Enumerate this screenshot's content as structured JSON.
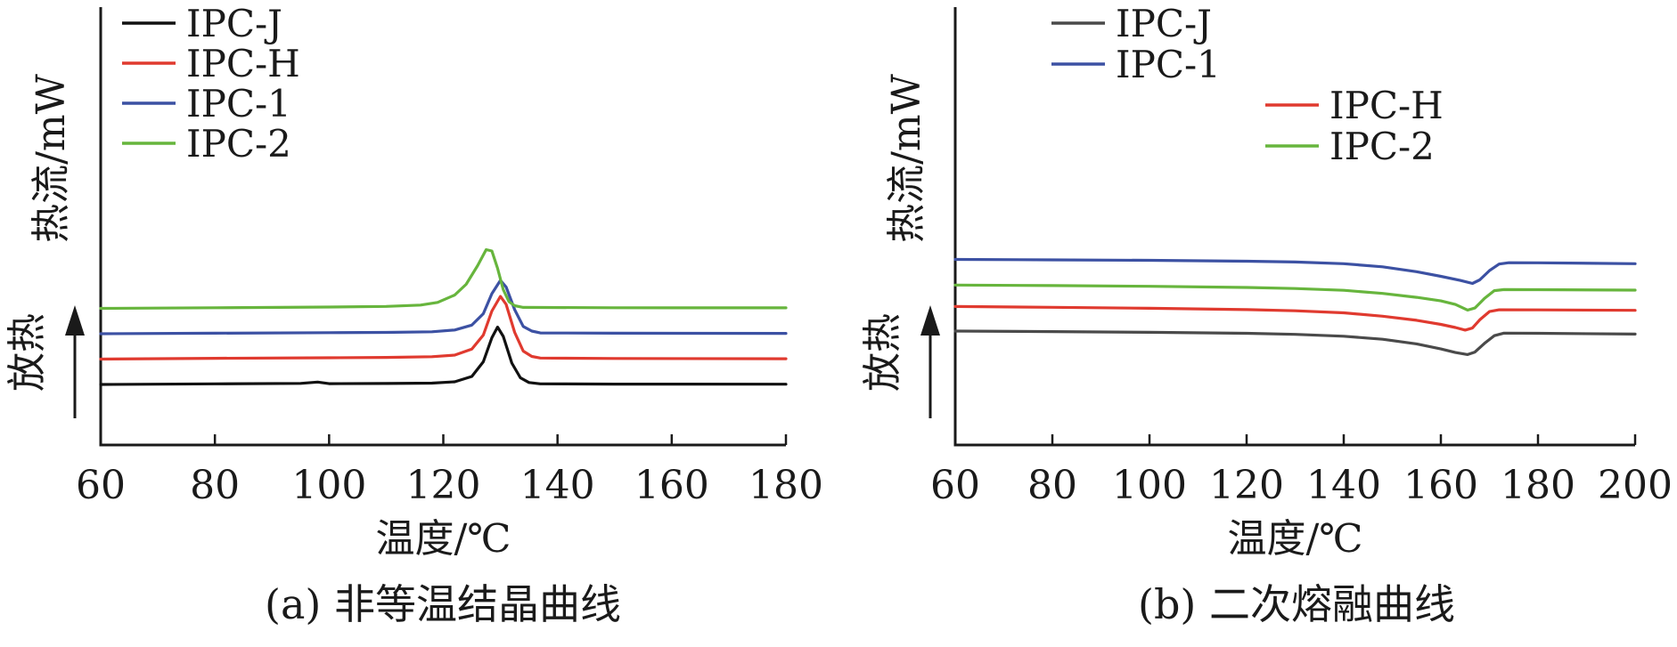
{
  "chart_data": [
    {
      "type": "line",
      "caption": "(a) 非等温结晶曲线",
      "xlabel": "温度/℃",
      "ylabel": "热流/mW",
      "yarrow_label": "放热",
      "xlim": [
        60,
        180
      ],
      "xticks": [
        60,
        80,
        100,
        120,
        140,
        160,
        180
      ],
      "yaxis_ticks": false,
      "legend_position": "top-left",
      "series": [
        {
          "name": "IPC-J",
          "color": "#111111",
          "offset": 0,
          "x": [
            60,
            80,
            95,
            98,
            100,
            110,
            118,
            122,
            125,
            127,
            128.5,
            129.5,
            130.5,
            132,
            133.5,
            135,
            137,
            150,
            180
          ],
          "y": [
            0.0,
            0.05,
            0.08,
            0.18,
            0.06,
            0.07,
            0.1,
            0.2,
            0.6,
            1.7,
            3.5,
            4.3,
            3.6,
            1.6,
            0.5,
            0.15,
            0.05,
            0.03,
            0.02
          ]
        },
        {
          "name": "IPC-H",
          "color": "#e03a2f",
          "offset": 1.9,
          "x": [
            60,
            80,
            100,
            110,
            118,
            122,
            125,
            127,
            128.5,
            130,
            131,
            132.5,
            134,
            135.5,
            137,
            150,
            180
          ],
          "y": [
            0.0,
            0.06,
            0.1,
            0.13,
            0.18,
            0.3,
            0.75,
            1.8,
            3.6,
            4.7,
            4.1,
            2.0,
            0.6,
            0.2,
            0.08,
            0.05,
            0.03
          ]
        },
        {
          "name": "IPC-1",
          "color": "#3c51a3",
          "offset": 3.8,
          "x": [
            60,
            80,
            100,
            110,
            118,
            122,
            125,
            127,
            128.5,
            130,
            131,
            132.5,
            134,
            135.5,
            137,
            150,
            180
          ],
          "y": [
            0.0,
            0.04,
            0.08,
            0.1,
            0.15,
            0.28,
            0.65,
            1.5,
            3.0,
            4.0,
            3.5,
            1.8,
            0.55,
            0.2,
            0.06,
            0.04,
            0.03
          ]
        },
        {
          "name": "IPC-2",
          "color": "#67b53d",
          "offset": 5.7,
          "x": [
            60,
            80,
            100,
            110,
            116,
            119,
            122,
            124,
            126,
            127.5,
            128.5,
            129.5,
            130.5,
            131.5,
            132.5,
            134,
            150,
            180
          ],
          "y": [
            0.0,
            0.05,
            0.1,
            0.15,
            0.25,
            0.45,
            1.0,
            1.8,
            3.2,
            4.4,
            4.3,
            3.0,
            1.4,
            0.5,
            0.2,
            0.07,
            0.05,
            0.04
          ]
        }
      ]
    },
    {
      "type": "line",
      "caption": "(b) 二次熔融曲线",
      "xlabel": "温度/℃",
      "ylabel": "热流/mW",
      "yarrow_label": "放热",
      "xlim": [
        60,
        200
      ],
      "xticks": [
        60,
        80,
        100,
        120,
        140,
        160,
        180,
        200
      ],
      "yaxis_ticks": false,
      "legend_position": "top",
      "legend_columns": 2,
      "series": [
        {
          "name": "IPC-J",
          "color": "#4a4a4a",
          "offset": 0,
          "x": [
            60,
            80,
            100,
            120,
            130,
            140,
            148,
            155,
            160,
            163,
            165.5,
            167,
            169,
            171,
            173,
            180,
            200
          ],
          "y": [
            0.0,
            -0.05,
            -0.12,
            -0.22,
            -0.32,
            -0.5,
            -0.8,
            -1.25,
            -1.75,
            -2.1,
            -2.3,
            -2.05,
            -1.2,
            -0.45,
            -0.2,
            -0.22,
            -0.3
          ]
        },
        {
          "name": "IPC-H",
          "color": "#e03a2f",
          "offset": 2.4,
          "x": [
            60,
            80,
            100,
            120,
            130,
            140,
            148,
            155,
            160,
            163,
            165,
            166.5,
            168,
            170,
            172,
            180,
            200
          ],
          "y": [
            0.0,
            -0.08,
            -0.17,
            -0.3,
            -0.42,
            -0.62,
            -0.95,
            -1.35,
            -1.75,
            -2.05,
            -2.3,
            -2.1,
            -1.3,
            -0.5,
            -0.32,
            -0.33,
            -0.37
          ]
        },
        {
          "name": "IPC-1",
          "color": "#3c51a3",
          "offset": 7.0,
          "x": [
            60,
            80,
            100,
            120,
            130,
            140,
            148,
            155,
            160,
            164,
            166.5,
            168,
            170,
            172,
            174,
            180,
            200
          ],
          "y": [
            0.0,
            -0.04,
            -0.09,
            -0.17,
            -0.25,
            -0.42,
            -0.72,
            -1.2,
            -1.65,
            -2.05,
            -2.35,
            -2.0,
            -1.1,
            -0.45,
            -0.32,
            -0.33,
            -0.42
          ]
        },
        {
          "name": "IPC-2",
          "color": "#67b53d",
          "offset": 4.5,
          "x": [
            60,
            80,
            100,
            120,
            130,
            140,
            148,
            155,
            160,
            163,
            165.5,
            167,
            169,
            171,
            173,
            180,
            200
          ],
          "y": [
            0.0,
            -0.06,
            -0.13,
            -0.24,
            -0.34,
            -0.52,
            -0.82,
            -1.2,
            -1.55,
            -1.9,
            -2.45,
            -2.25,
            -1.3,
            -0.55,
            -0.45,
            -0.46,
            -0.5
          ]
        }
      ]
    }
  ]
}
